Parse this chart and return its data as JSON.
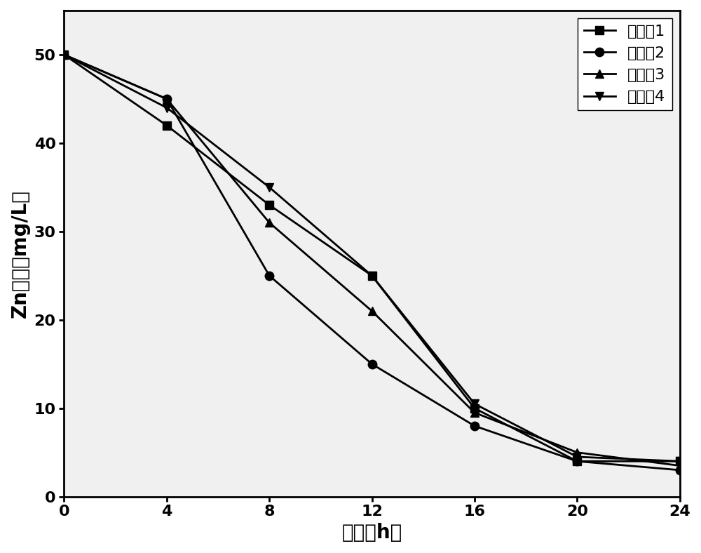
{
  "x": [
    0,
    4,
    8,
    12,
    16,
    20,
    24
  ],
  "series": [
    {
      "label": "实施入1",
      "y": [
        50,
        42,
        33,
        25,
        10,
        4,
        4
      ],
      "marker": "s",
      "color": "#000000",
      "linestyle": "-"
    },
    {
      "label": "实施入2",
      "y": [
        50,
        45,
        25,
        15,
        8,
        4,
        3
      ],
      "marker": "o",
      "color": "#000000",
      "linestyle": "-"
    },
    {
      "label": "实施入3",
      "y": [
        50,
        45,
        31,
        21,
        9.5,
        5,
        3.5
      ],
      "marker": "^",
      "color": "#000000",
      "linestyle": "-"
    },
    {
      "label": "实施入4",
      "y": [
        50,
        44,
        35,
        25,
        10.5,
        4.5,
        4
      ],
      "marker": "v",
      "color": "#000000",
      "linestyle": "-"
    }
  ],
  "xlabel": "时间（h）",
  "ylabel": "Zn浓度（mg/L）",
  "xlim": [
    0,
    24
  ],
  "ylim": [
    0,
    55
  ],
  "xticks": [
    0,
    4,
    8,
    12,
    16,
    20,
    24
  ],
  "yticks": [
    0,
    10,
    20,
    30,
    40,
    50
  ],
  "label_fontsize": 20,
  "tick_fontsize": 16,
  "legend_fontsize": 16,
  "linewidth": 2.0,
  "markersize": 9,
  "background_color": "#f0f0f0",
  "figure_background": "#ffffff"
}
